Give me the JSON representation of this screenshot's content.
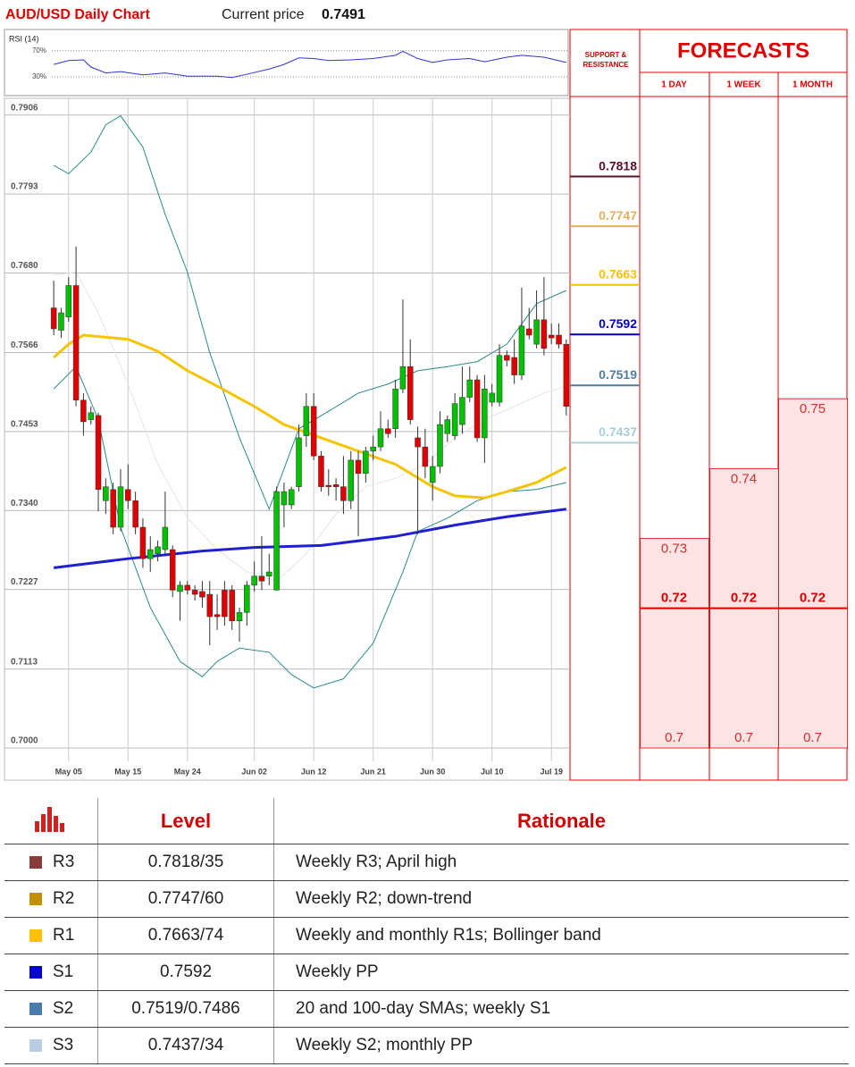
{
  "header": {
    "title": "AUD/USD Daily Chart",
    "price_label": "Current price",
    "price": "0.7491"
  },
  "chart_data": [
    {
      "type": "line",
      "title": "RSI (14)",
      "color": "#3333cc",
      "ylim": [
        4,
        97
      ],
      "yticks": [
        {
          "value": 70,
          "label": "70%"
        },
        {
          "value": 30,
          "label": "30%"
        }
      ],
      "x": [
        0,
        2,
        4,
        5,
        7,
        9,
        12,
        15,
        18,
        22,
        24,
        26,
        29,
        31,
        33,
        35,
        37,
        40,
        43,
        46,
        47,
        49,
        51,
        53,
        56,
        58,
        61,
        63,
        66,
        69
      ],
      "values": [
        49,
        55,
        56,
        45,
        36,
        38,
        33,
        36,
        31,
        31,
        29,
        34,
        42,
        49,
        59,
        58,
        55,
        56,
        58,
        63,
        69,
        58,
        52,
        56,
        58,
        53,
        60,
        63,
        60,
        52
      ]
    },
    {
      "type": "candlestick",
      "up_color": "#00c000",
      "down_color": "#e00000",
      "ylim": [
        0.6954,
        0.793
      ],
      "yticks": [
        0.7906,
        0.7793,
        {
          "value": 0.768,
          "label": "0.7680"
        },
        0.7566,
        0.7453,
        {
          "value": 0.734,
          "label": "0.7340"
        },
        0.7227,
        0.7113,
        {
          "value": 0.7,
          "label": "0.7000"
        }
      ],
      "categories": [
        null,
        null,
        "May 05",
        null,
        null,
        null,
        null,
        null,
        null,
        null,
        "May 15",
        null,
        null,
        null,
        null,
        null,
        null,
        null,
        "May 24",
        null,
        null,
        null,
        null,
        null,
        null,
        null,
        null,
        "Jun 02",
        null,
        null,
        null,
        null,
        null,
        null,
        null,
        "Jun 12",
        null,
        null,
        null,
        null,
        null,
        null,
        null,
        "Jun 21",
        null,
        null,
        null,
        null,
        null,
        null,
        null,
        "Jun 30",
        null,
        null,
        null,
        null,
        null,
        null,
        null,
        "Jul 10",
        null,
        null,
        null,
        null,
        null,
        null,
        null,
        "Jul 19",
        null,
        null
      ],
      "open": [
        0.763,
        0.7598,
        0.7617,
        0.7662,
        0.7498,
        0.747,
        0.7476,
        0.7354,
        0.737,
        0.7316,
        0.737,
        0.7354,
        0.7316,
        0.7271,
        0.7278,
        0.7284,
        0.7284,
        0.7224,
        0.7233,
        0.7226,
        0.7224,
        0.722,
        0.7191,
        0.7226,
        0.7226,
        0.7182,
        0.7194,
        0.7233,
        0.7246,
        0.7246,
        0.7226,
        0.7348,
        0.7348,
        0.7374,
        0.7447,
        0.7489,
        0.7418,
        0.7376,
        0.7377,
        0.7374,
        0.7354,
        0.7412,
        0.7393,
        0.7425,
        0.7431,
        0.7457,
        0.7457,
        0.7514,
        0.7546,
        0.7444,
        0.7431,
        0.738,
        0.7403,
        0.745,
        0.7447,
        0.7463,
        0.7502,
        0.7527,
        0.7444,
        0.7495,
        0.7495,
        0.7562,
        0.7559,
        0.7534,
        0.76,
        0.7578,
        0.7613,
        0.7591,
        0.7591,
        0.7578
      ],
      "high": [
        0.7669,
        0.763,
        0.7674,
        0.7718,
        0.7508,
        0.7489,
        0.748,
        0.7386,
        0.738,
        0.7399,
        0.7406,
        0.7367,
        0.7329,
        0.7303,
        0.7297,
        0.7367,
        0.729,
        0.7239,
        0.7239,
        0.7233,
        0.7239,
        0.7239,
        0.722,
        0.7239,
        0.7233,
        0.7201,
        0.7239,
        0.7267,
        0.7303,
        0.7278,
        0.7374,
        0.738,
        0.7374,
        0.7463,
        0.7508,
        0.7508,
        0.7425,
        0.7399,
        0.7386,
        0.7418,
        0.7425,
        0.7425,
        0.7431,
        0.7447,
        0.7482,
        0.747,
        0.7527,
        0.7642,
        0.7585,
        0.746,
        0.7457,
        0.7418,
        0.7482,
        0.7476,
        0.7508,
        0.7546,
        0.7546,
        0.7534,
        0.7534,
        0.7521,
        0.7578,
        0.7569,
        0.7585,
        0.7659,
        0.763,
        0.7655,
        0.7674,
        0.7608,
        0.7608,
        0.7585
      ],
      "low": [
        0.7591,
        0.7587,
        0.761,
        0.7489,
        0.7447,
        0.7463,
        0.7339,
        0.7335,
        0.7306,
        0.731,
        0.7342,
        0.7306,
        0.7258,
        0.7252,
        0.7267,
        0.7278,
        0.7216,
        0.7182,
        0.722,
        0.7211,
        0.7201,
        0.7147,
        0.7169,
        0.7175,
        0.7169,
        0.7152,
        0.7175,
        0.7224,
        0.7226,
        0.7233,
        0.7226,
        0.7316,
        0.7342,
        0.7367,
        0.7431,
        0.7412,
        0.7367,
        0.7361,
        0.7354,
        0.7335,
        0.7342,
        0.7303,
        0.738,
        0.7412,
        0.7425,
        0.7444,
        0.7444,
        0.7508,
        0.7463,
        0.7306,
        0.7386,
        0.7354,
        0.7393,
        0.7438,
        0.7441,
        0.745,
        0.7495,
        0.7438,
        0.7408,
        0.7489,
        0.7489,
        0.7546,
        0.7521,
        0.7527,
        0.7585,
        0.7572,
        0.7562,
        0.7578,
        0.7572,
        0.7476
      ],
      "close": [
        0.76,
        0.7623,
        0.7662,
        0.7498,
        0.7467,
        0.748,
        0.737,
        0.7374,
        0.7316,
        0.7374,
        0.7354,
        0.7316,
        0.7271,
        0.7284,
        0.7288,
        0.7316,
        0.7226,
        0.7233,
        0.7226,
        0.722,
        0.7216,
        0.7188,
        0.7188,
        0.7188,
        0.7182,
        0.7194,
        0.7233,
        0.7246,
        0.7239,
        0.7252,
        0.7367,
        0.7367,
        0.737,
        0.7444,
        0.7489,
        0.7418,
        0.7374,
        0.7374,
        0.7374,
        0.7354,
        0.7412,
        0.7393,
        0.7425,
        0.7431,
        0.7457,
        0.745,
        0.7514,
        0.7546,
        0.747,
        0.7431,
        0.7403,
        0.7403,
        0.7463,
        0.747,
        0.7493,
        0.7502,
        0.7527,
        0.7444,
        0.7514,
        0.7508,
        0.7562,
        0.7555,
        0.7534,
        0.7604,
        0.7591,
        0.7613,
        0.7572,
        0.7587,
        0.7578,
        0.7489
      ],
      "overlays": [
        {
          "color": "#e4e4e4",
          "width": 1,
          "x": [
            0,
            3,
            6,
            10,
            14,
            18,
            22,
            26,
            30,
            34,
            38,
            42,
            46,
            50,
            54,
            58,
            62,
            66,
            69
          ],
          "values": [
            0.7677,
            0.7681,
            0.7623,
            0.7521,
            0.7406,
            0.7329,
            0.7284,
            0.7252,
            0.7239,
            0.7278,
            0.7335,
            0.7374,
            0.7386,
            0.7406,
            0.7444,
            0.747,
            0.7489,
            0.7508,
            0.7518
          ]
        },
        {
          "color": "#2a8a8a",
          "width": 1,
          "x": [
            0,
            2,
            5,
            7,
            9,
            12,
            15,
            18,
            21,
            25,
            29,
            33,
            37,
            41,
            45,
            49,
            53,
            57,
            61,
            65,
            69
          ],
          "values": [
            0.7834,
            0.7822,
            0.7853,
            0.7892,
            0.7905,
            0.786,
            0.7764,
            0.7681,
            0.7566,
            0.7444,
            0.7342,
            0.7457,
            0.7482,
            0.7508,
            0.7521,
            0.754,
            0.7546,
            0.7553,
            0.7578,
            0.7636,
            0.7655
          ]
        },
        {
          "color": "#2a8a8a",
          "width": 1,
          "x": [
            0,
            3,
            6,
            9,
            13,
            17,
            20,
            22,
            25,
            29,
            32,
            35,
            39,
            43,
            47,
            49,
            53,
            57,
            61,
            65,
            69
          ],
          "values": [
            0.7514,
            0.7546,
            0.747,
            0.7316,
            0.7201,
            0.7124,
            0.7102,
            0.7124,
            0.7143,
            0.7137,
            0.7105,
            0.7086,
            0.7099,
            0.715,
            0.7252,
            0.731,
            0.7329,
            0.7354,
            0.7367,
            0.737,
            0.738
          ]
        },
        {
          "color": "#f5c400",
          "width": 3,
          "x": [
            0,
            2,
            4,
            10,
            14,
            18,
            22,
            27,
            31,
            36,
            41,
            46,
            51,
            54,
            58,
            61,
            65,
            69
          ],
          "values": [
            0.7559,
            0.7578,
            0.7591,
            0.7585,
            0.7568,
            0.754,
            0.7518,
            0.7489,
            0.7463,
            0.7444,
            0.7425,
            0.7406,
            0.7374,
            0.7361,
            0.7358,
            0.7367,
            0.738,
            0.7402
          ]
        },
        {
          "color": "#2020d0",
          "width": 3,
          "x": [
            0,
            10,
            20,
            27,
            36,
            46,
            54,
            61,
            69
          ],
          "values": [
            0.7258,
            0.7271,
            0.7282,
            0.7287,
            0.729,
            0.7303,
            0.7319,
            0.7331,
            0.7342
          ]
        }
      ]
    }
  ],
  "support_resistance": {
    "title": "SUPPORT & RESISTANCE",
    "levels": [
      {
        "value": 0.7818,
        "color": "#5a0f2a"
      },
      {
        "value": 0.7747,
        "color": "#e0b060"
      },
      {
        "value": 0.7663,
        "color": "#ffc000"
      },
      {
        "value": 0.7592,
        "color": "#0000c0"
      },
      {
        "value": 0.7519,
        "color": "#4f7fa0"
      },
      {
        "value": 0.7437,
        "color": "#a8cfd6"
      }
    ]
  },
  "forecasts": {
    "title": "FORECASTS",
    "horizons": [
      {
        "label": "1 DAY",
        "high": 0.73,
        "mid": 0.72,
        "low": 0.7
      },
      {
        "label": "1 WEEK",
        "high": 0.74,
        "mid": 0.72,
        "low": 0.7
      },
      {
        "label": "1 MONTH",
        "high": 0.75,
        "mid": 0.72,
        "low": 0.7
      }
    ]
  },
  "table": {
    "headers": [
      "Level",
      "Rationale"
    ],
    "rows": [
      {
        "label": "R3",
        "color": "#8b3a3a",
        "level": "0.7818/35",
        "rationale": "Weekly R3; April high"
      },
      {
        "label": "R2",
        "color": "#c09000",
        "level": "0.7747/60",
        "rationale": "Weekly R2; down-trend"
      },
      {
        "label": "R1",
        "color": "#ffc000",
        "level": "0.7663/74",
        "rationale": "Weekly and monthly R1s; Bollinger band"
      },
      {
        "label": "S1",
        "color": "#0000d0",
        "level": "0.7592",
        "rationale": "Weekly PP"
      },
      {
        "label": "S2",
        "color": "#4a7ab0",
        "level": "0.7519/0.7486",
        "rationale": "20 and 100-day SMAs; weekly S1"
      },
      {
        "label": "S3",
        "color": "#b8cce4",
        "level": "0.7437/34",
        "rationale": "Weekly S2; monthly PP"
      }
    ]
  }
}
